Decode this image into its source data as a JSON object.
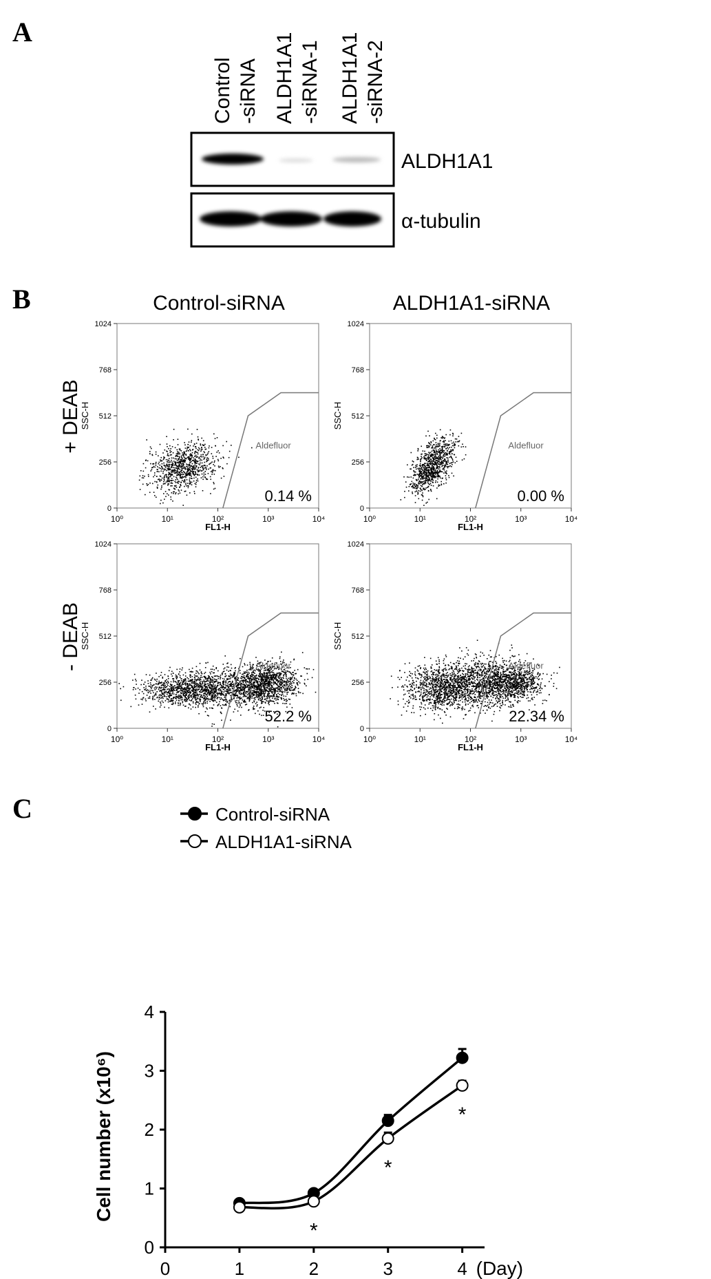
{
  "panel_a": {
    "label": "A",
    "lanes": [
      [
        "Control",
        "-siRNA"
      ],
      [
        "ALDH1A1",
        "-siRNA-1"
      ],
      [
        "ALDH1A1",
        "-siRNA-2"
      ]
    ],
    "bands": [
      "ALDH1A1",
      "α-tubulin"
    ]
  },
  "panel_b": {
    "label": "B",
    "columns": [
      "Control-siRNA",
      "ALDH1A1-siRNA"
    ],
    "rows": [
      "+ DEAB",
      "- DEAB"
    ],
    "percents": [
      [
        "0.14 %",
        "0.00 %"
      ],
      [
        "52.2 %",
        "22.34 %"
      ]
    ],
    "ylabel": "SSC-H",
    "xlabel": "FL1-H",
    "gate_label": "Aldefluor",
    "ylim": [
      0,
      1024
    ],
    "yticks": [
      0,
      256,
      512,
      768,
      1024
    ],
    "xscale": "log",
    "xlim": [
      1,
      10000
    ],
    "xticks": [
      {
        "value": 1,
        "label": "10⁰"
      },
      {
        "value": 10,
        "label": "10¹"
      },
      {
        "value": 100,
        "label": "10²"
      },
      {
        "value": 1000,
        "label": "10³"
      },
      {
        "value": 10000,
        "label": "10⁴"
      }
    ]
  },
  "chart_data": {
    "type": "line",
    "label": "C",
    "ylabel": "Cell number (x10⁶)",
    "xlabel": "(Day)",
    "x": [
      1,
      2,
      3,
      4
    ],
    "series": [
      {
        "name": "Control-siRNA",
        "color": "#000000",
        "marker": "filled",
        "values": [
          0.75,
          0.92,
          2.15,
          3.22
        ],
        "errors": [
          0.05,
          0.04,
          0.1,
          0.15
        ]
      },
      {
        "name": "ALDH1A1-siRNA",
        "color": "#000000",
        "marker": "open",
        "values": [
          0.68,
          0.78,
          1.85,
          2.75
        ],
        "errors": [
          0.03,
          0.03,
          0.1,
          0.08
        ]
      }
    ],
    "annotations": [
      {
        "x": 2,
        "text": "*"
      },
      {
        "x": 3,
        "text": "*"
      },
      {
        "x": 4,
        "text": "*"
      }
    ],
    "xlim": [
      0,
      4.3
    ],
    "xticks": [
      0,
      1,
      2,
      3,
      4
    ],
    "ylim": [
      0,
      4
    ],
    "yticks": [
      0,
      1,
      2,
      3,
      4
    ],
    "legend": "upper left"
  }
}
